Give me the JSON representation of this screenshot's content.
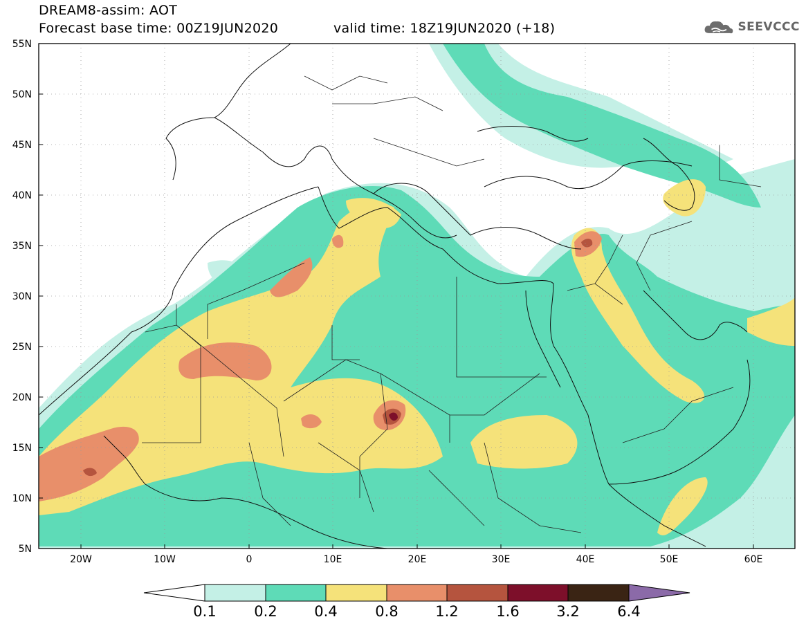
{
  "header": {
    "title": "DREAM8-assim: AOT",
    "base_time": "Forecast base time: 00Z19JUN2020",
    "valid_time": "valid time: 18Z19JUN2020 (+18)",
    "logo_text": "SEEVCCC",
    "logo_icon": "cloud-icon"
  },
  "map": {
    "lat_labels": [
      "55N",
      "50N",
      "45N",
      "40N",
      "35N",
      "30N",
      "25N",
      "20N",
      "15N",
      "10N",
      "5N"
    ],
    "lon_labels": [
      "20W",
      "10W",
      "0",
      "10E",
      "20E",
      "30E",
      "40E",
      "50E",
      "60E"
    ],
    "lon_range": [
      -25,
      65
    ],
    "lat_range": [
      5,
      55
    ]
  },
  "colorbar": {
    "labels": [
      "0.1",
      "0.2",
      "0.4",
      "0.8",
      "1.2",
      "1.6",
      "3.2",
      "6.4"
    ],
    "colors": [
      "#c4f0e6",
      "#5edbb7",
      "#f5e27a",
      "#e88f6a",
      "#b5543e",
      "#7d0f2a",
      "#3a2414",
      "#8b6aa8"
    ]
  }
}
